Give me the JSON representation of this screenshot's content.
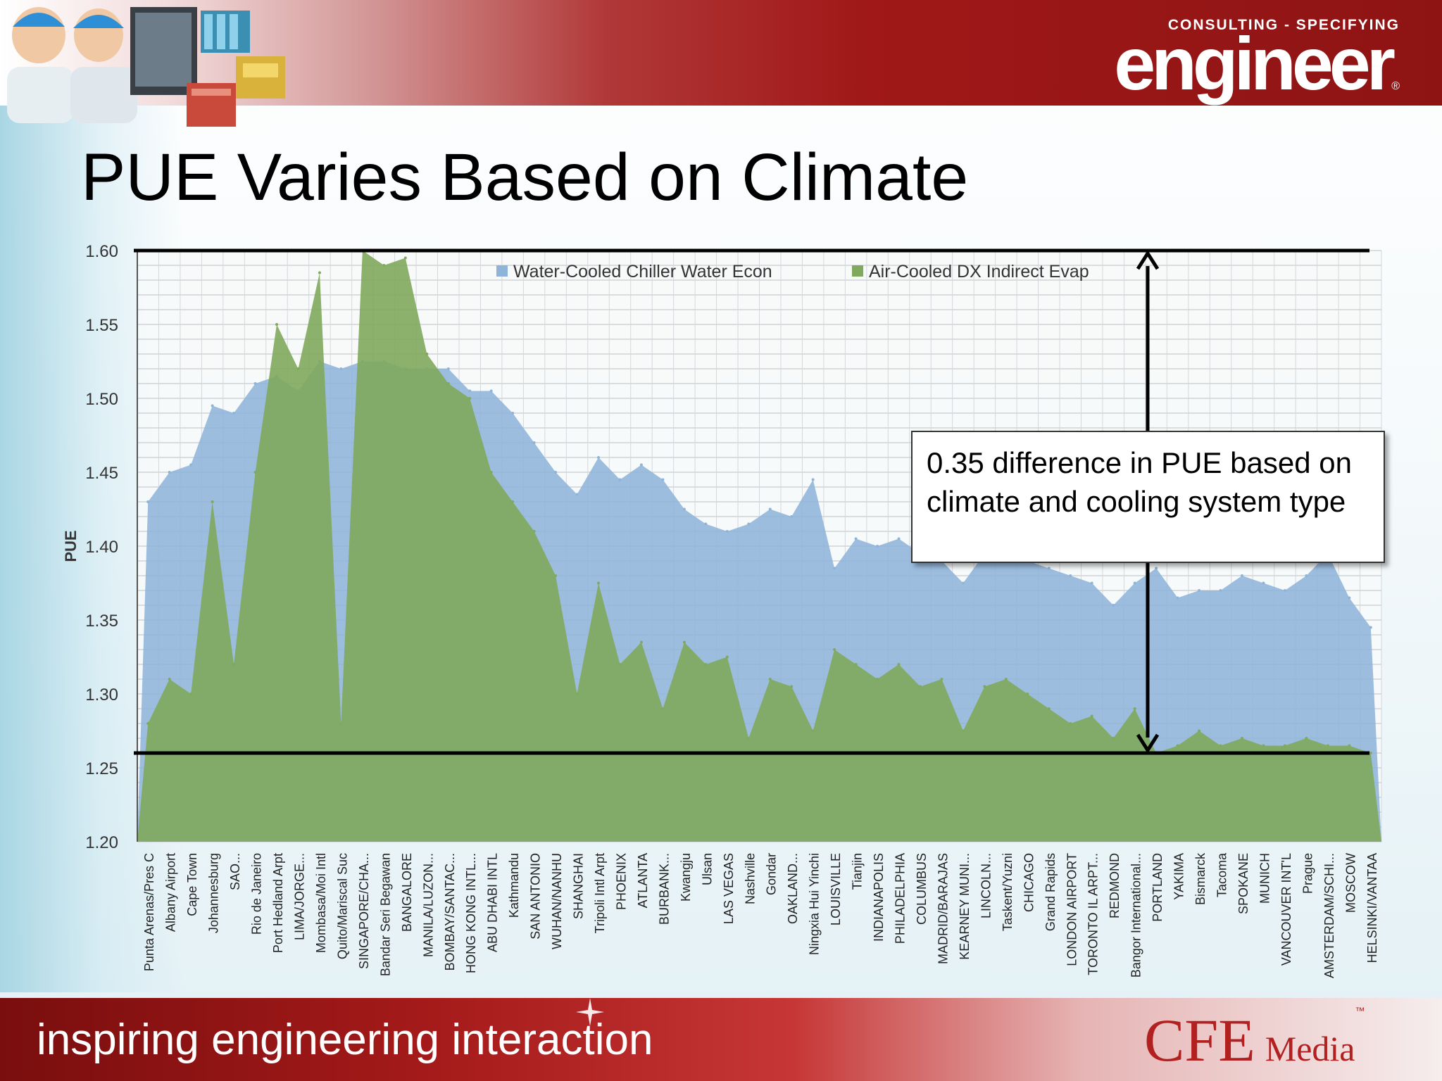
{
  "slide": {
    "title": "PUE Varies Based on Climate",
    "brand": {
      "top": "CONSULTING - SPECIFYING",
      "main": "engineer",
      "reg": "®"
    },
    "callout": "0.35 difference in PUE based on climate and cooling system type",
    "footer": {
      "tagline": "inspiring engineering interaction",
      "logo_cfe": "CFE",
      "logo_media": "Media",
      "logo_tm": "™"
    },
    "colors": {
      "accent_red": "#a01818",
      "series_blue": "#8fb4d9",
      "series_green": "#7fa95c"
    }
  },
  "chart_data": {
    "type": "area",
    "ylabel": "PUE",
    "ylim": [
      1.2,
      1.6
    ],
    "yticks": [
      "1.20",
      "1.25",
      "1.30",
      "1.35",
      "1.40",
      "1.45",
      "1.50",
      "1.55",
      "1.60"
    ],
    "grid": true,
    "legend_position": "top-center",
    "x": [
      "Punta Arenas/Pres C",
      "Albany Airport",
      "Cape Town",
      "Johannesburg",
      "SAO...",
      "Rio de Janeiro",
      "Port Hedland Arpt",
      "LIMA/JORGE...",
      "Mombasa/Moi Intl",
      "Quito/Mariscal Suc",
      "SINGAPORE/CHA...",
      "Bandar Seri Begawan",
      "BANGALORE",
      "MANILA/LUZON...",
      "BOMBAY/SANTAC...",
      "HONG KONG INTL...",
      "ABU DHABI INTL",
      "Kathmandu",
      "SAN ANTONIO",
      "WUHAN/NANHU",
      "SHANGHAI",
      "Tripoli Intl Arpt",
      "PHOENIX",
      "ATLANTA",
      "BURBANK...",
      "Kwangju",
      "Ulsan",
      "LAS VEGAS",
      "Nashville",
      "Gondar",
      "OAKLAND...",
      "Ningxia Hui Yinchi",
      "LOUISVILLE",
      "Tianjin",
      "INDIANAPOLIS",
      "PHILADELPHIA",
      "COLUMBUS",
      "MADRID/BARAJAS",
      "KEARNEY MUNI...",
      "LINCOLN...",
      "Taskent/Yuzni",
      "CHICAGO",
      "Grand Rapids",
      "LONDON AIRPORT",
      "TORONTO IL ARPT...",
      "REDMOND",
      "Bangor International...",
      "PORTLAND",
      "YAKIMA",
      "Bismarck",
      "Tacoma",
      "SPOKANE",
      "MUNICH",
      "VANCOUVER INT'L",
      "Prague",
      "AMSTERDAM/SCHI...",
      "MOSCOW",
      "HELSINKI/VANTAA"
    ],
    "series": [
      {
        "name": "Water-Cooled Chiller Water Econ",
        "color": "#8fb4d9",
        "values": [
          1.43,
          1.45,
          1.455,
          1.495,
          1.49,
          1.51,
          1.515,
          1.505,
          1.525,
          1.52,
          1.525,
          1.525,
          1.52,
          1.52,
          1.52,
          1.505,
          1.505,
          1.49,
          1.47,
          1.45,
          1.435,
          1.46,
          1.445,
          1.455,
          1.445,
          1.425,
          1.415,
          1.41,
          1.415,
          1.425,
          1.42,
          1.445,
          1.385,
          1.405,
          1.4,
          1.405,
          1.395,
          1.39,
          1.375,
          1.395,
          1.39,
          1.39,
          1.385,
          1.38,
          1.375,
          1.36,
          1.375,
          1.385,
          1.365,
          1.37,
          1.37,
          1.38,
          1.375,
          1.37,
          1.38,
          1.395,
          1.365,
          1.345
        ]
      },
      {
        "name": "Air-Cooled DX Indirect Evap",
        "color": "#7fa95c",
        "values": [
          1.28,
          1.31,
          1.3,
          1.43,
          1.32,
          1.45,
          1.55,
          1.52,
          1.585,
          1.28,
          1.6,
          1.59,
          1.595,
          1.53,
          1.51,
          1.5,
          1.45,
          1.43,
          1.41,
          1.38,
          1.3,
          1.375,
          1.32,
          1.335,
          1.29,
          1.335,
          1.32,
          1.325,
          1.27,
          1.31,
          1.305,
          1.275,
          1.33,
          1.32,
          1.31,
          1.32,
          1.305,
          1.31,
          1.275,
          1.305,
          1.31,
          1.3,
          1.29,
          1.28,
          1.285,
          1.27,
          1.29,
          1.26,
          1.265,
          1.275,
          1.265,
          1.27,
          1.265,
          1.265,
          1.27,
          1.265,
          1.265,
          1.26
        ]
      }
    ],
    "annotation": {
      "text": "0.35 difference in PUE based on climate and cooling system type",
      "from": 1.26,
      "to": 1.6,
      "reference_lines": [
        1.6,
        1.26
      ]
    }
  }
}
